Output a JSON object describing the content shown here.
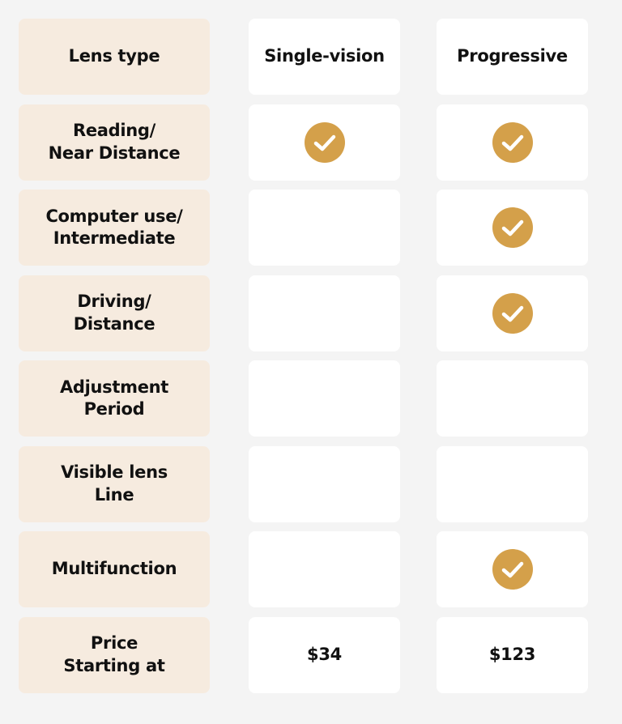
{
  "table": {
    "header": [
      "Lens type",
      "Single-vision",
      "Progressive"
    ],
    "rows": [
      {
        "label": [
          "Reading/",
          "Near Distance"
        ],
        "cells": [
          true,
          true
        ]
      },
      {
        "label": [
          "Computer use/",
          "Intermediate"
        ],
        "cells": [
          false,
          true
        ]
      },
      {
        "label": [
          "Driving/",
          "Distance"
        ],
        "cells": [
          false,
          true
        ]
      },
      {
        "label": [
          "Adjustment",
          "Period"
        ],
        "cells": [
          false,
          false
        ]
      },
      {
        "label": [
          "Visible lens",
          "Line"
        ],
        "cells": [
          false,
          false
        ]
      },
      {
        "label": [
          "Multifunction"
        ],
        "cells": [
          false,
          true
        ]
      },
      {
        "label": [
          "Price",
          "Starting at"
        ],
        "cells": [
          "$34",
          "$123"
        ]
      }
    ]
  }
}
